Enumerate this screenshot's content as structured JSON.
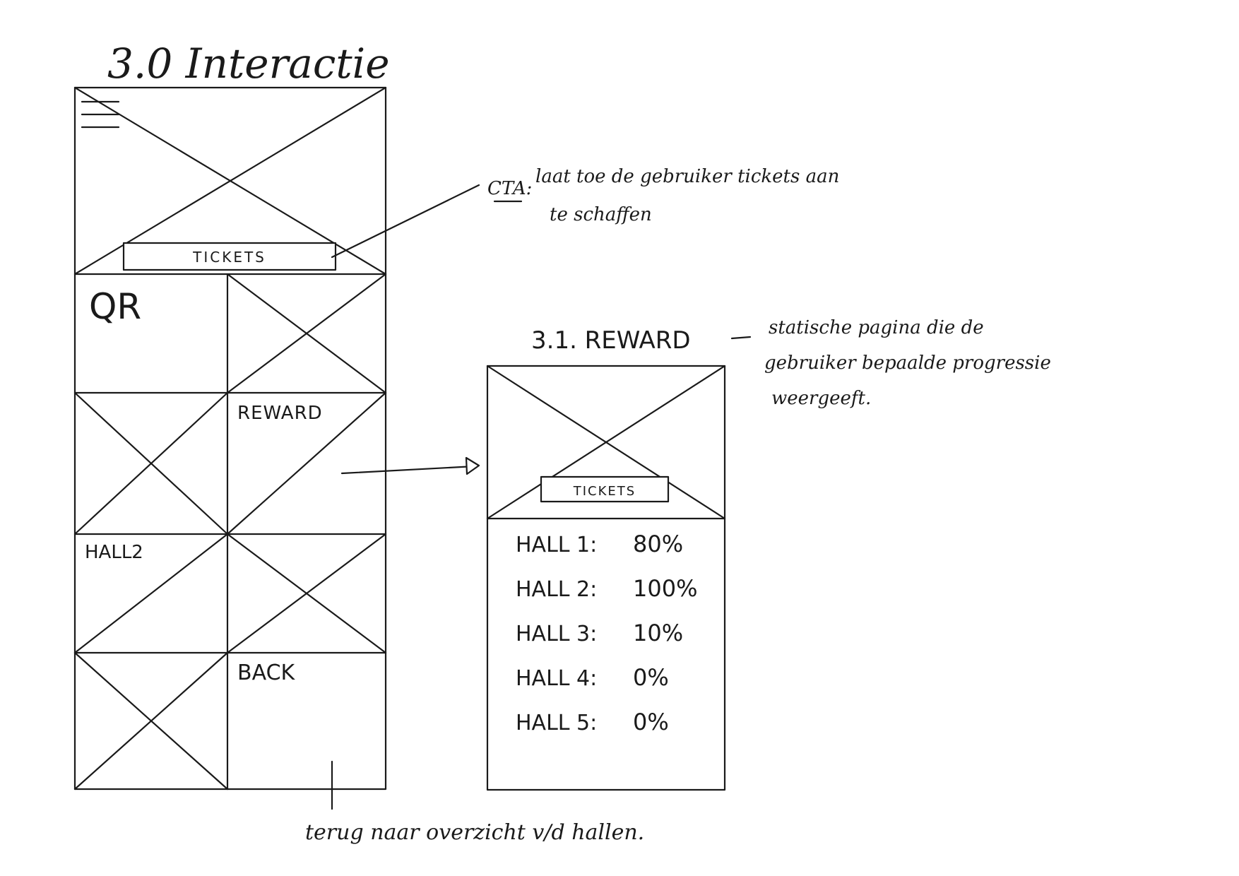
{
  "screen1": {
    "title": "3.0 Interactie",
    "menu_icon": "hamburger-icon",
    "cta_label": "TICKETS",
    "tiles": {
      "qr": "QR",
      "reward": "REWARD",
      "hall2": "HALL2",
      "back": "BACK"
    }
  },
  "screen2": {
    "title": "3.1. REWARD",
    "cta_label": "TICKETS",
    "progress": [
      {
        "label": "HALL 1:",
        "value": "80%"
      },
      {
        "label": "HALL 2:",
        "value": "100%"
      },
      {
        "label": "HALL 3:",
        "value": "10%"
      },
      {
        "label": "HALL 4:",
        "value": "0%"
      },
      {
        "label": "HALL 5:",
        "value": "0%"
      }
    ]
  },
  "annotations": {
    "cta_prefix": "CTA:",
    "cta_line1": "laat toe de gebruiker tickets aan",
    "cta_line2": "te schaffen",
    "reward_line1": "statische pagina die de",
    "reward_line2": "gebruiker bepaalde progressie",
    "reward_line3": "weergeeft.",
    "back_note": "terug naar overzicht v/d hallen."
  }
}
